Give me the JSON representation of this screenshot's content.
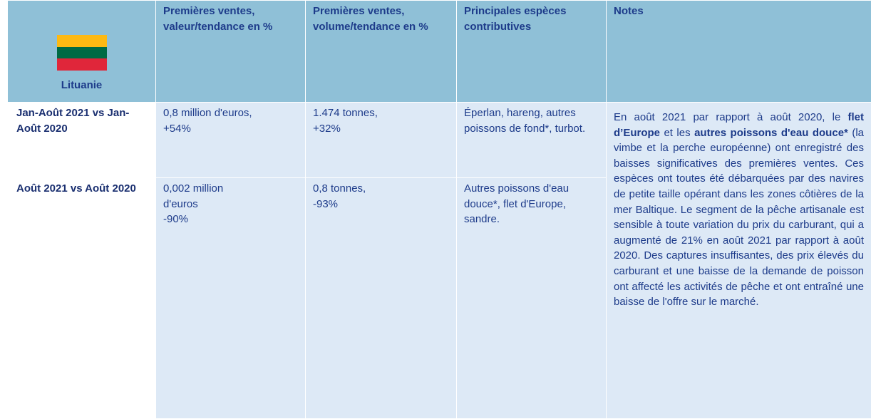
{
  "header": {
    "country": "Lituanie",
    "columns": [
      "Premières ventes, valeur/tendance en %",
      "Premières ventes, volume/tendance en %",
      "Principales espèces contributives",
      "Notes"
    ]
  },
  "table": {
    "rows": [
      [
        "Jan-Août 2021 vs Jan-Août 2020",
        "0,8 million d'euros,\n+54%",
        "1.474 tonnes,\n+32%",
        "Éperlan, hareng, autres poissons de fond*, turbot."
      ],
      [
        "Août 2021 vs Août 2020",
        "0,002 million\nd'euros\n-90%",
        "0,8 tonnes,\n-93%",
        "Autres poissons d'eau douce*, flet d'Europe, sandre."
      ]
    ]
  },
  "notes": [
    {
      "text": "En août 2021 par rapport à août 2020, le ",
      "bold": false
    },
    {
      "text": "flet d’Europe",
      "bold": true
    },
    {
      "text": " et les ",
      "bold": false
    },
    {
      "text": "autres poissons d'eau douce*",
      "bold": true
    },
    {
      "text": " (la vimbe et la perche européenne) ont enregistré des baisses significatives des premières ventes. Ces espèces ont toutes été débarquées par des navires de petite taille opérant dans les zones côtières de la mer Baltique. Le segment de la pêche artisanale est sensible à toute variation du prix du carburant, qui a augmenté de 21% en août 2021 par rapport à août 2020. Des captures insuffisantes, des prix élevés du carburant et une baisse de la demande de poisson ont affecté les activités de pêche et ont entraîné une baisse de l'offre sur le marché.",
      "bold": false
    }
  ]
}
